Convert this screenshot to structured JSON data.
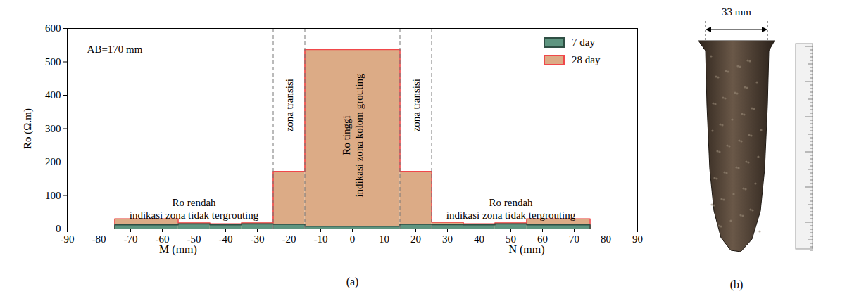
{
  "chart_data": {
    "type": "step",
    "panel_label": "(a)",
    "ylabel": "Ro (Ω.m)",
    "xlabels": [
      {
        "text": "M (mm)",
        "x": -55
      },
      {
        "text": "N (mm)",
        "x": 55
      }
    ],
    "bins": [
      -75,
      -55,
      -45,
      -35,
      -25,
      -15,
      15,
      25,
      35,
      45,
      55,
      75
    ],
    "series": [
      {
        "name": "7 day",
        "color": "#5e9580",
        "values": [
          12,
          15,
          12,
          15,
          14,
          8,
          14,
          13,
          12,
          15,
          12
        ]
      },
      {
        "name": "28 day",
        "color": "#dcab86",
        "values": [
          30,
          18,
          15,
          18,
          172,
          537,
          172,
          20,
          15,
          18,
          30
        ]
      }
    ],
    "dividers": [
      -25,
      -15,
      15,
      25
    ],
    "annotations": [
      {
        "lines": [
          "AB=170 mm"
        ],
        "x": -75,
        "y": 540
      },
      {
        "lines": [
          "Ro rendah",
          "indikasi zona tidak tergrouting"
        ],
        "x": -50,
        "y": 62
      },
      {
        "lines": [
          "Ro rendah",
          "indikasi zona tidak tergrouting"
        ],
        "x": 50,
        "y": 62
      }
    ],
    "zone_labels": [
      {
        "lines": [
          "zona transisi"
        ],
        "x": -20,
        "y": 370
      },
      {
        "lines": [
          "Ro tinggi",
          "indikasi zona kolom grouting"
        ],
        "x": 0,
        "y": 280
      },
      {
        "lines": [
          "zona transisi"
        ],
        "x": 20,
        "y": 370
      }
    ],
    "xlim": [
      -90,
      90
    ],
    "xticks": [
      -90,
      -80,
      -70,
      -60,
      -50,
      -40,
      -30,
      -20,
      -10,
      0,
      10,
      20,
      30,
      40,
      50,
      60,
      70,
      80,
      90
    ],
    "ylim": [
      0,
      600
    ],
    "yticks": [
      0,
      100,
      200,
      300,
      400,
      500,
      600
    ],
    "grid": false,
    "legend": "top-right"
  },
  "photo": {
    "panel_label": "(b)",
    "width_label": "33 mm"
  }
}
